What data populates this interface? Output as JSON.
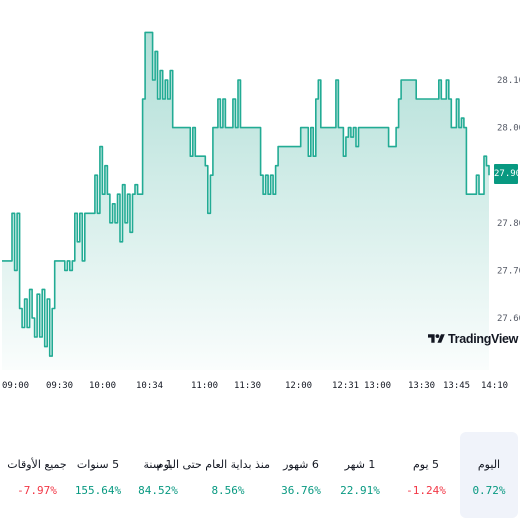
{
  "colors": {
    "line": "#22ab94",
    "fill": "#089981",
    "positive": "#089981",
    "negative": "#f23645",
    "active_bg": "#f0f3fa"
  },
  "chart_data": {
    "type": "area",
    "y_ticks": [
      "27.60",
      "27.70",
      "27.80",
      "28.00",
      "28.10"
    ],
    "y_tick_values": [
      27.6,
      27.7,
      27.8,
      28.0,
      28.1
    ],
    "ylim": [
      27.52,
      28.22
    ],
    "x_ticks": [
      "09:00",
      "09:30",
      "10:00",
      "10:34",
      "11:00",
      "11:30",
      "12:00",
      "12:31",
      "13:00",
      "13:30",
      "13:45",
      "14:10"
    ],
    "last_price": "27.90",
    "values": [
      27.72,
      27.72,
      27.72,
      27.72,
      27.82,
      27.7,
      27.82,
      27.62,
      27.58,
      27.64,
      27.58,
      27.66,
      27.6,
      27.56,
      27.65,
      27.56,
      27.66,
      27.54,
      27.64,
      27.52,
      27.62,
      27.72,
      27.72,
      27.72,
      27.72,
      27.7,
      27.72,
      27.7,
      27.72,
      27.82,
      27.76,
      27.82,
      27.72,
      27.82,
      27.82,
      27.82,
      27.82,
      27.9,
      27.82,
      27.96,
      27.86,
      27.92,
      27.86,
      27.8,
      27.84,
      27.8,
      27.86,
      27.76,
      27.88,
      27.8,
      27.86,
      27.78,
      27.86,
      27.88,
      27.86,
      27.86,
      28.06,
      28.2,
      28.2,
      28.2,
      28.1,
      28.16,
      28.06,
      28.12,
      28.06,
      28.1,
      28.06,
      28.12,
      28.0,
      28.0,
      28.0,
      28.0,
      28.0,
      28.0,
      28.0,
      27.94,
      28.0,
      27.94,
      27.94,
      27.94,
      27.94,
      27.92,
      27.82,
      27.9,
      28.0,
      28.0,
      28.06,
      28.0,
      28.06,
      28.0,
      28.0,
      28.0,
      28.06,
      28.0,
      28.1,
      28.0,
      28.0,
      28.0,
      28.0,
      28.0,
      28.0,
      28.0,
      28.0,
      27.9,
      27.86,
      27.9,
      27.86,
      27.9,
      27.86,
      27.92,
      27.96,
      27.96,
      27.96,
      27.96,
      27.96,
      27.96,
      27.96,
      27.96,
      27.96,
      28.0,
      28.0,
      28.0,
      27.94,
      28.0,
      27.94,
      28.06,
      28.1,
      28.0,
      28.0,
      28.0,
      28.0,
      28.0,
      28.0,
      28.1,
      28.0,
      28.0,
      27.94,
      27.98,
      28.0,
      27.98,
      28.0,
      27.96,
      28.0,
      28.0,
      28.0,
      28.0,
      28.0,
      28.0,
      28.0,
      28.0,
      28.0,
      28.0,
      28.0,
      28.0,
      27.96,
      27.96,
      27.96,
      28.0,
      28.06,
      28.1,
      28.1,
      28.1,
      28.1,
      28.1,
      28.1,
      28.06,
      28.06,
      28.06,
      28.06,
      28.06,
      28.06,
      28.06,
      28.06,
      28.06,
      28.1,
      28.06,
      28.06,
      28.1,
      28.06,
      28.0,
      28.0,
      28.06,
      28.0,
      28.02,
      28.0,
      27.86,
      27.86,
      27.86,
      27.86,
      27.9,
      27.86,
      27.86,
      27.94,
      27.92,
      27.9
    ],
    "grid": false,
    "legend": "none"
  },
  "price_tag": "27.90",
  "logo": {
    "text": "TradingView"
  },
  "periods": [
    {
      "label": "جميع الأوقات",
      "value": "-7.97%",
      "sign": "neg"
    },
    {
      "label": "5 سنوات",
      "value": "155.64%",
      "sign": "pos"
    },
    {
      "label": "1 سنة",
      "value": "84.52%",
      "sign": "pos"
    },
    {
      "label": "منذ بداية العام حتى اليوم",
      "value": "8.56%",
      "sign": "pos"
    },
    {
      "label": "6 شهور",
      "value": "36.76%",
      "sign": "pos"
    },
    {
      "label": "1 شهر",
      "value": "22.91%",
      "sign": "pos"
    },
    {
      "label": "5 يوم",
      "value": "-1.24%",
      "sign": "neg"
    },
    {
      "label": "اليوم",
      "value": "0.72%",
      "sign": "pos",
      "active": true
    }
  ]
}
